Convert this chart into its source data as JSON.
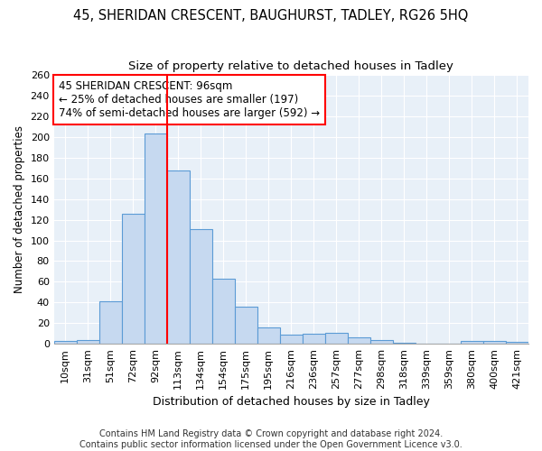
{
  "title": "45, SHERIDAN CRESCENT, BAUGHURST, TADLEY, RG26 5HQ",
  "subtitle": "Size of property relative to detached houses in Tadley",
  "xlabel": "Distribution of detached houses by size in Tadley",
  "ylabel": "Number of detached properties",
  "bar_labels": [
    "10sqm",
    "31sqm",
    "51sqm",
    "72sqm",
    "92sqm",
    "113sqm",
    "134sqm",
    "154sqm",
    "175sqm",
    "195sqm",
    "216sqm",
    "236sqm",
    "257sqm",
    "277sqm",
    "298sqm",
    "318sqm",
    "339sqm",
    "359sqm",
    "380sqm",
    "400sqm",
    "421sqm"
  ],
  "bar_values": [
    3,
    4,
    41,
    126,
    203,
    168,
    111,
    63,
    36,
    16,
    9,
    10,
    11,
    6,
    4,
    1,
    0,
    0,
    3,
    3,
    2
  ],
  "bar_color": "#c6d9f0",
  "bar_edge_color": "#5b9bd5",
  "annotation_text": "45 SHERIDAN CRESCENT: 96sqm\n← 25% of detached houses are smaller (197)\n74% of semi-detached houses are larger (592) →",
  "annotation_box_color": "white",
  "annotation_box_edge_color": "red",
  "vline_x_index": 4,
  "vline_color": "red",
  "ylim": [
    0,
    260
  ],
  "yticks": [
    0,
    20,
    40,
    60,
    80,
    100,
    120,
    140,
    160,
    180,
    200,
    220,
    240,
    260
  ],
  "footer_line1": "Contains HM Land Registry data © Crown copyright and database right 2024.",
  "footer_line2": "Contains public sector information licensed under the Open Government Licence v3.0.",
  "bg_color": "#ffffff",
  "plot_bg_color": "#e8f0f8",
  "grid_color": "white",
  "title_fontsize": 10.5,
  "subtitle_fontsize": 9.5,
  "xlabel_fontsize": 9,
  "ylabel_fontsize": 8.5,
  "tick_fontsize": 8,
  "annotation_fontsize": 8.5,
  "footer_fontsize": 7
}
